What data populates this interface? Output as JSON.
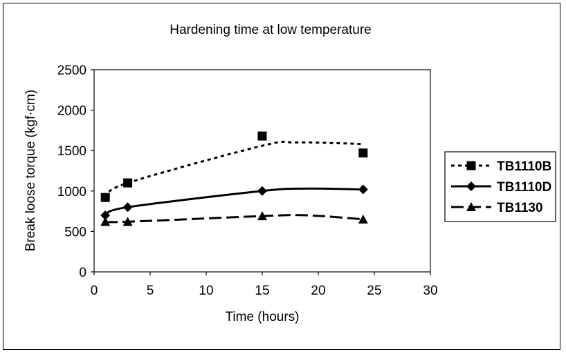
{
  "chart_data": {
    "type": "line",
    "title": "Hardening time at low temperature",
    "xlabel": "Time (hours)",
    "ylabel": "Break loose torque (kgf·cm)",
    "xlim": [
      0,
      30
    ],
    "ylim": [
      0,
      2500
    ],
    "x_ticks": [
      "0",
      "5",
      "10",
      "15",
      "20",
      "25",
      "30"
    ],
    "y_ticks": [
      "0",
      "500",
      "1000",
      "1500",
      "2000",
      "2500"
    ],
    "grid": false,
    "legend_position": "right",
    "series": [
      {
        "name": "TB1110B",
        "marker": "square",
        "line_style": "dotted",
        "color": "#000000",
        "x": [
          1,
          3,
          15,
          24
        ],
        "y": [
          920,
          1100,
          1680,
          1470
        ],
        "curve": [
          [
            1,
            920
          ],
          [
            3,
            1100
          ],
          [
            15,
            1560
          ],
          [
            18,
            1600
          ],
          [
            22,
            1590
          ],
          [
            24,
            1580
          ]
        ]
      },
      {
        "name": "TB1110D",
        "marker": "diamond",
        "line_style": "solid",
        "color": "#000000",
        "x": [
          1,
          3,
          15,
          24
        ],
        "y": [
          700,
          800,
          1000,
          1020
        ],
        "curve": [
          [
            1,
            700
          ],
          [
            3,
            800
          ],
          [
            15,
            1000
          ],
          [
            19,
            1030
          ],
          [
            24,
            1020
          ]
        ]
      },
      {
        "name": "TB1130",
        "marker": "triangle",
        "line_style": "dashed",
        "color": "#000000",
        "x": [
          1,
          3,
          15,
          24
        ],
        "y": [
          620,
          620,
          690,
          650
        ],
        "curve": [
          [
            1,
            620
          ],
          [
            3,
            620
          ],
          [
            15,
            690
          ],
          [
            19,
            700
          ],
          [
            24,
            650
          ]
        ]
      }
    ]
  }
}
